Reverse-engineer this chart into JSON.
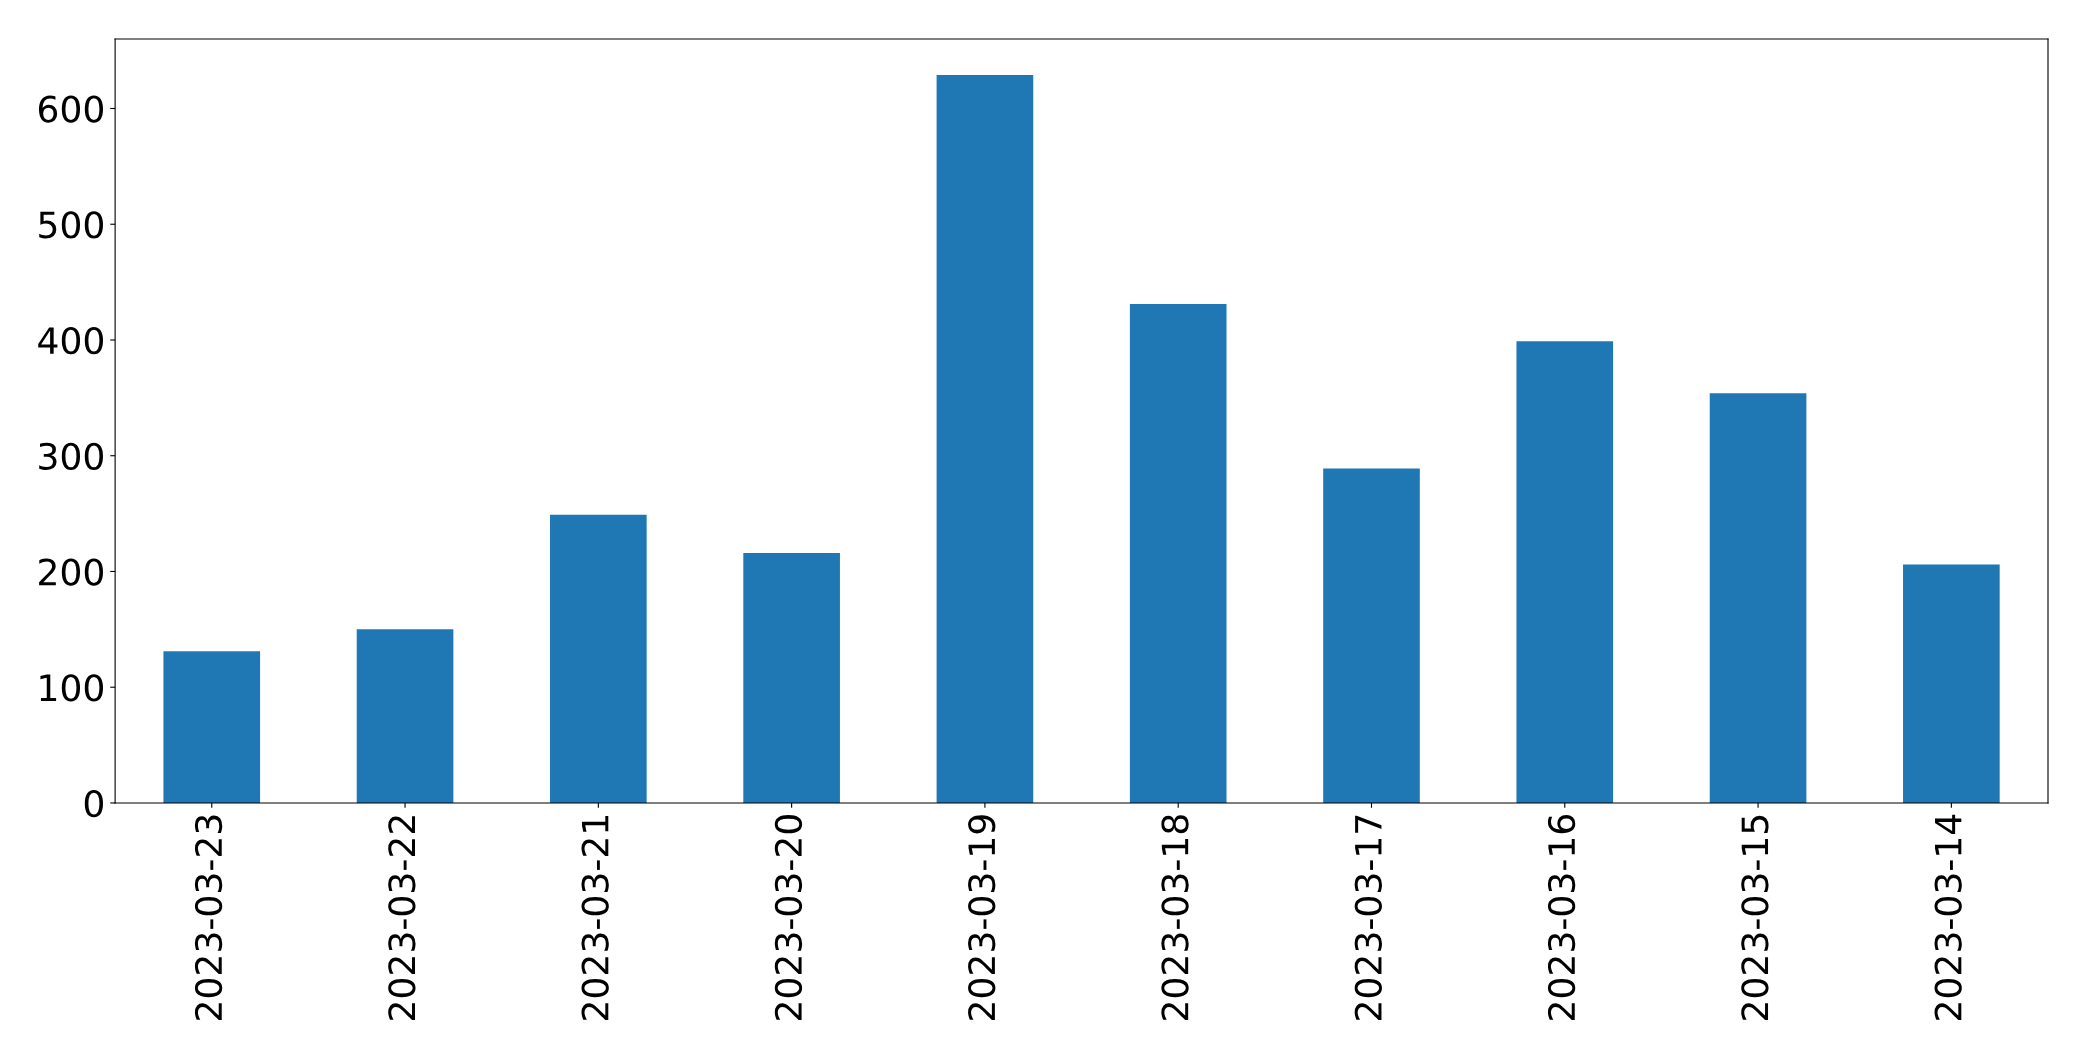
{
  "chart_data": {
    "type": "bar",
    "categories": [
      "2023-03-23",
      "2023-03-22",
      "2023-03-21",
      "2023-03-20",
      "2023-03-19",
      "2023-03-18",
      "2023-03-17",
      "2023-03-16",
      "2023-03-15",
      "2023-03-14"
    ],
    "values": [
      131,
      150,
      249,
      216,
      629,
      431,
      289,
      399,
      354,
      206
    ],
    "color": "#1f77b4",
    "ylim": [
      0,
      660
    ],
    "yticks": [
      0,
      100,
      200,
      300,
      400,
      500,
      600
    ],
    "grid": false,
    "legend": false
  }
}
